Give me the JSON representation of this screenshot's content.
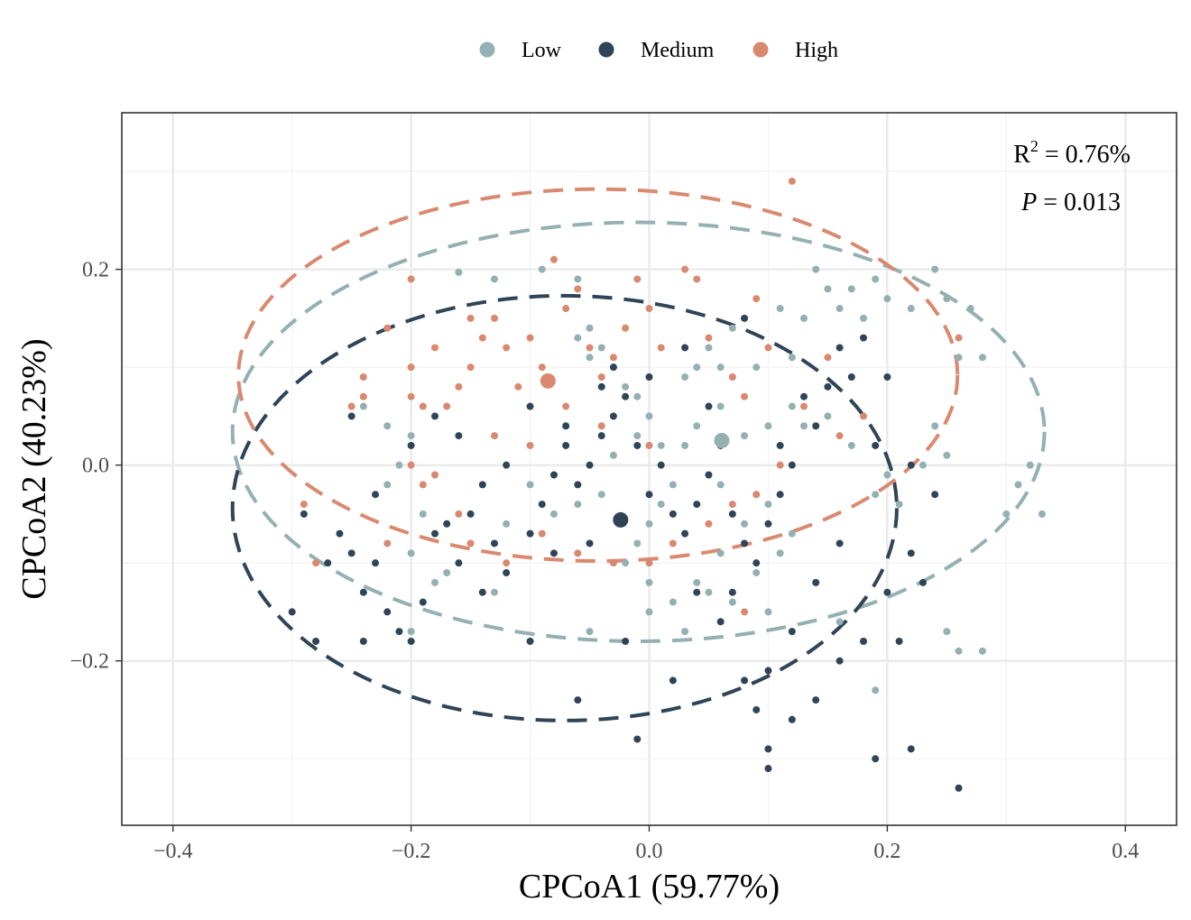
{
  "chart_data": {
    "type": "scatter",
    "xlabel": "CPCoA1 (59.77%)",
    "ylabel": "CPCoA2 (40.23%)",
    "xlim": [
      -0.443,
      0.443
    ],
    "ylim": [
      -0.368,
      0.36
    ],
    "x_ticks": [
      -0.4,
      -0.2,
      0.0,
      0.2,
      0.4
    ],
    "y_ticks": [
      -0.2,
      0.0,
      0.2
    ],
    "x_tick_labels": [
      "−0.4",
      "−0.2",
      "0.0",
      "0.2",
      "0.4"
    ],
    "y_tick_labels": [
      "−0.2",
      "0.0",
      "0.2"
    ],
    "grid": true,
    "legend_position": "top",
    "annotations": {
      "r2_base": "R",
      "r2_exp": "2",
      "r2_value": " = 0.76%",
      "p_label": "P",
      "p_value": " = 0.013"
    },
    "series": [
      {
        "name": "Low",
        "color": "#94b0b2",
        "centroid": [
          0.061,
          0.025
        ],
        "ellipse": {
          "cx": -0.009,
          "cy": 0.034,
          "rx": 0.341,
          "ry": 0.214
        },
        "points": [
          [
            -0.16,
            0.197
          ],
          [
            -0.13,
            0.19
          ],
          [
            -0.09,
            0.2
          ],
          [
            -0.06,
            0.19
          ],
          [
            -0.05,
            0.14
          ],
          [
            -0.06,
            0.13
          ],
          [
            -0.05,
            0.11
          ],
          [
            -0.04,
            0.12
          ],
          [
            -0.03,
            0.1
          ],
          [
            -0.02,
            0.08
          ],
          [
            -0.01,
            0.07
          ],
          [
            0.0,
            0.05
          ],
          [
            0.01,
            0.02
          ],
          [
            0.03,
            0.09
          ],
          [
            0.04,
            0.1
          ],
          [
            0.05,
            0.12
          ],
          [
            0.06,
            0.1
          ],
          [
            0.07,
            0.14
          ],
          [
            0.09,
            0.1
          ],
          [
            0.11,
            0.16
          ],
          [
            0.12,
            0.11
          ],
          [
            0.13,
            0.15
          ],
          [
            0.14,
            0.2
          ],
          [
            0.15,
            0.18
          ],
          [
            0.16,
            0.16
          ],
          [
            0.17,
            0.18
          ],
          [
            0.18,
            0.15
          ],
          [
            0.19,
            0.19
          ],
          [
            0.2,
            0.17
          ],
          [
            0.22,
            0.16
          ],
          [
            0.24,
            0.2
          ],
          [
            0.25,
            0.17
          ],
          [
            0.27,
            0.16
          ],
          [
            0.26,
            0.11
          ],
          [
            0.28,
            0.11
          ],
          [
            0.24,
            0.04
          ],
          [
            0.25,
            0.01
          ],
          [
            0.23,
            0.0
          ],
          [
            0.2,
            -0.01
          ],
          [
            0.19,
            -0.03
          ],
          [
            0.21,
            -0.04
          ],
          [
            0.17,
            0.02
          ],
          [
            0.15,
            0.05
          ],
          [
            0.13,
            0.04
          ],
          [
            0.12,
            0.06
          ],
          [
            0.1,
            0.04
          ],
          [
            0.08,
            0.03
          ],
          [
            0.06,
            0.06
          ],
          [
            0.04,
            0.04
          ],
          [
            0.03,
            0.02
          ],
          [
            0.02,
            -0.02
          ],
          [
            0.01,
            -0.04
          ],
          [
            0.0,
            -0.06
          ],
          [
            -0.01,
            -0.08
          ],
          [
            -0.02,
            -0.1
          ],
          [
            0.0,
            -0.12
          ],
          [
            0.02,
            -0.14
          ],
          [
            0.04,
            -0.12
          ],
          [
            0.06,
            -0.09
          ],
          [
            0.08,
            -0.06
          ],
          [
            0.1,
            -0.04
          ],
          [
            0.12,
            -0.07
          ],
          [
            0.11,
            -0.09
          ],
          [
            0.09,
            -0.11
          ],
          [
            0.07,
            -0.14
          ],
          [
            0.05,
            -0.13
          ],
          [
            -0.04,
            -0.03
          ],
          [
            -0.06,
            -0.04
          ],
          [
            -0.08,
            -0.05
          ],
          [
            -0.1,
            -0.02
          ],
          [
            -0.12,
            -0.06
          ],
          [
            -0.15,
            -0.08
          ],
          [
            -0.17,
            -0.11
          ],
          [
            -0.2,
            -0.09
          ],
          [
            -0.19,
            -0.05
          ],
          [
            -0.22,
            -0.02
          ],
          [
            -0.21,
            0.0
          ],
          [
            -0.2,
            0.03
          ],
          [
            -0.22,
            0.04
          ],
          [
            -0.24,
            0.06
          ],
          [
            -0.2,
            -0.17
          ],
          [
            -0.18,
            -0.12
          ],
          [
            -0.13,
            -0.13
          ],
          [
            -0.05,
            -0.17
          ],
          [
            0.0,
            -0.15
          ],
          [
            0.03,
            -0.17
          ],
          [
            0.1,
            -0.15
          ],
          [
            0.16,
            -0.16
          ],
          [
            0.19,
            -0.23
          ],
          [
            0.26,
            -0.19
          ],
          [
            0.28,
            -0.19
          ],
          [
            0.25,
            -0.17
          ],
          [
            0.3,
            -0.05
          ],
          [
            0.31,
            -0.02
          ],
          [
            0.33,
            -0.05
          ],
          [
            0.32,
            0.0
          ],
          [
            -0.01,
            0.03
          ],
          [
            -0.03,
            0.01
          ],
          [
            0.06,
            -0.02
          ],
          [
            0.09,
            -0.03
          ]
        ]
      },
      {
        "name": "Medium",
        "color": "#2f4457",
        "centroid": [
          -0.024,
          -0.056
        ],
        "ellipse": {
          "cx": -0.071,
          "cy": -0.044,
          "rx": 0.279,
          "ry": 0.217
        },
        "points": [
          [
            -0.3,
            -0.15
          ],
          [
            -0.28,
            -0.18
          ],
          [
            -0.26,
            -0.07
          ],
          [
            -0.25,
            -0.09
          ],
          [
            -0.24,
            -0.13
          ],
          [
            -0.24,
            -0.18
          ],
          [
            -0.23,
            -0.1
          ],
          [
            -0.22,
            -0.15
          ],
          [
            -0.21,
            -0.17
          ],
          [
            -0.2,
            -0.18
          ],
          [
            -0.19,
            -0.14
          ],
          [
            -0.18,
            -0.07
          ],
          [
            -0.17,
            -0.06
          ],
          [
            -0.16,
            -0.1
          ],
          [
            -0.15,
            -0.05
          ],
          [
            -0.14,
            -0.13
          ],
          [
            -0.13,
            -0.08
          ],
          [
            -0.12,
            -0.11
          ],
          [
            -0.1,
            -0.07
          ],
          [
            -0.1,
            -0.18
          ],
          [
            -0.09,
            -0.04
          ],
          [
            -0.08,
            -0.01
          ],
          [
            -0.07,
            0.02
          ],
          [
            -0.06,
            -0.02
          ],
          [
            -0.05,
            0.0
          ],
          [
            -0.04,
            0.03
          ],
          [
            -0.03,
            0.05
          ],
          [
            -0.02,
            0.07
          ],
          [
            -0.01,
            0.02
          ],
          [
            0.0,
            -0.03
          ],
          [
            0.01,
            0.0
          ],
          [
            0.02,
            -0.05
          ],
          [
            0.03,
            -0.07
          ],
          [
            0.04,
            -0.04
          ],
          [
            0.05,
            -0.01
          ],
          [
            0.06,
            0.02
          ],
          [
            0.07,
            -0.05
          ],
          [
            0.08,
            -0.08
          ],
          [
            0.09,
            -0.1
          ],
          [
            0.1,
            -0.06
          ],
          [
            0.11,
            -0.03
          ],
          [
            0.12,
            0.0
          ],
          [
            0.14,
            0.04
          ],
          [
            0.15,
            0.08
          ],
          [
            0.16,
            0.12
          ],
          [
            0.17,
            0.09
          ],
          [
            0.18,
            0.13
          ],
          [
            0.2,
            0.09
          ],
          [
            0.22,
            0.0
          ],
          [
            0.24,
            -0.03
          ],
          [
            0.22,
            -0.09
          ],
          [
            0.2,
            -0.13
          ],
          [
            0.18,
            -0.18
          ],
          [
            0.16,
            -0.2
          ],
          [
            0.14,
            -0.24
          ],
          [
            0.12,
            -0.26
          ],
          [
            0.1,
            -0.29
          ],
          [
            0.09,
            -0.25
          ],
          [
            0.08,
            -0.22
          ],
          [
            0.19,
            -0.3
          ],
          [
            0.22,
            -0.29
          ],
          [
            0.26,
            -0.33
          ],
          [
            0.1,
            -0.31
          ],
          [
            -0.01,
            -0.28
          ],
          [
            -0.06,
            -0.24
          ],
          [
            -0.02,
            -0.18
          ],
          [
            0.02,
            -0.22
          ],
          [
            0.04,
            -0.13
          ],
          [
            0.06,
            -0.16
          ],
          [
            0.07,
            -0.13
          ],
          [
            0.1,
            -0.21
          ],
          [
            0.12,
            -0.17
          ],
          [
            0.14,
            -0.12
          ],
          [
            0.16,
            -0.08
          ],
          [
            0.08,
            0.15
          ],
          [
            0.03,
            0.12
          ],
          [
            0.0,
            0.09
          ],
          [
            -0.04,
            0.08
          ],
          [
            -0.07,
            0.04
          ],
          [
            -0.1,
            0.06
          ],
          [
            -0.12,
            0.0
          ],
          [
            -0.14,
            -0.02
          ],
          [
            -0.16,
            0.03
          ],
          [
            -0.18,
            0.05
          ],
          [
            -0.2,
            0.02
          ],
          [
            -0.23,
            -0.03
          ],
          [
            -0.25,
            0.05
          ],
          [
            -0.27,
            -0.1
          ],
          [
            -0.29,
            -0.05
          ],
          [
            0.19,
            0.02
          ],
          [
            0.23,
            -0.12
          ],
          [
            0.21,
            -0.18
          ],
          [
            0.13,
            0.07
          ],
          [
            0.11,
            0.02
          ],
          [
            0.05,
            0.06
          ],
          [
            -0.03,
            0.1
          ],
          [
            -0.05,
            -0.08
          ],
          [
            -0.08,
            -0.09
          ]
        ]
      },
      {
        "name": "High",
        "color": "#d9896f",
        "centroid": [
          -0.085,
          0.086
        ],
        "ellipse": {
          "cx": -0.043,
          "cy": 0.092,
          "rx": 0.302,
          "ry": 0.19
        },
        "points": [
          [
            -0.29,
            -0.04
          ],
          [
            -0.28,
            -0.1
          ],
          [
            -0.25,
            0.06
          ],
          [
            -0.24,
            0.09
          ],
          [
            -0.24,
            0.07
          ],
          [
            -0.22,
            0.14
          ],
          [
            -0.2,
            0.07
          ],
          [
            -0.2,
            0.1
          ],
          [
            -0.19,
            0.06
          ],
          [
            -0.18,
            0.12
          ],
          [
            -0.2,
            0.0
          ],
          [
            -0.18,
            -0.01
          ],
          [
            -0.17,
            0.06
          ],
          [
            -0.16,
            0.08
          ],
          [
            -0.15,
            0.1
          ],
          [
            -0.14,
            0.13
          ],
          [
            -0.13,
            0.15
          ],
          [
            -0.12,
            0.12
          ],
          [
            -0.11,
            0.08
          ],
          [
            -0.1,
            0.13
          ],
          [
            -0.09,
            0.1
          ],
          [
            -0.08,
            0.21
          ],
          [
            -0.07,
            0.16
          ],
          [
            -0.06,
            0.18
          ],
          [
            -0.05,
            0.12
          ],
          [
            -0.04,
            0.09
          ],
          [
            -0.03,
            0.11
          ],
          [
            -0.02,
            0.14
          ],
          [
            -0.01,
            0.19
          ],
          [
            0.0,
            0.16
          ],
          [
            0.01,
            0.12
          ],
          [
            0.03,
            0.2
          ],
          [
            0.04,
            0.19
          ],
          [
            0.05,
            0.13
          ],
          [
            0.07,
            0.09
          ],
          [
            0.08,
            0.07
          ],
          [
            0.09,
            0.17
          ],
          [
            0.1,
            0.12
          ],
          [
            0.12,
            0.29
          ],
          [
            0.15,
            0.11
          ],
          [
            0.18,
            0.05
          ],
          [
            0.26,
            0.13
          ],
          [
            0.16,
            0.03
          ],
          [
            0.13,
            0.06
          ],
          [
            0.11,
            0.0
          ],
          [
            0.09,
            -0.03
          ],
          [
            0.07,
            -0.04
          ],
          [
            0.05,
            -0.06
          ],
          [
            0.02,
            -0.08
          ],
          [
            0.0,
            -0.1
          ],
          [
            -0.03,
            -0.1
          ],
          [
            -0.06,
            -0.09
          ],
          [
            -0.09,
            -0.07
          ],
          [
            -0.12,
            -0.1
          ],
          [
            -0.15,
            -0.08
          ],
          [
            -0.16,
            -0.05
          ],
          [
            -0.19,
            -0.02
          ],
          [
            -0.13,
            0.03
          ],
          [
            -0.1,
            0.02
          ],
          [
            0.0,
            0.02
          ],
          [
            -0.07,
            0.06
          ],
          [
            -0.04,
            0.04
          ],
          [
            -0.2,
            0.19
          ],
          [
            -0.15,
            0.15
          ],
          [
            0.08,
            -0.15
          ],
          [
            -0.22,
            -0.08
          ]
        ]
      }
    ]
  }
}
